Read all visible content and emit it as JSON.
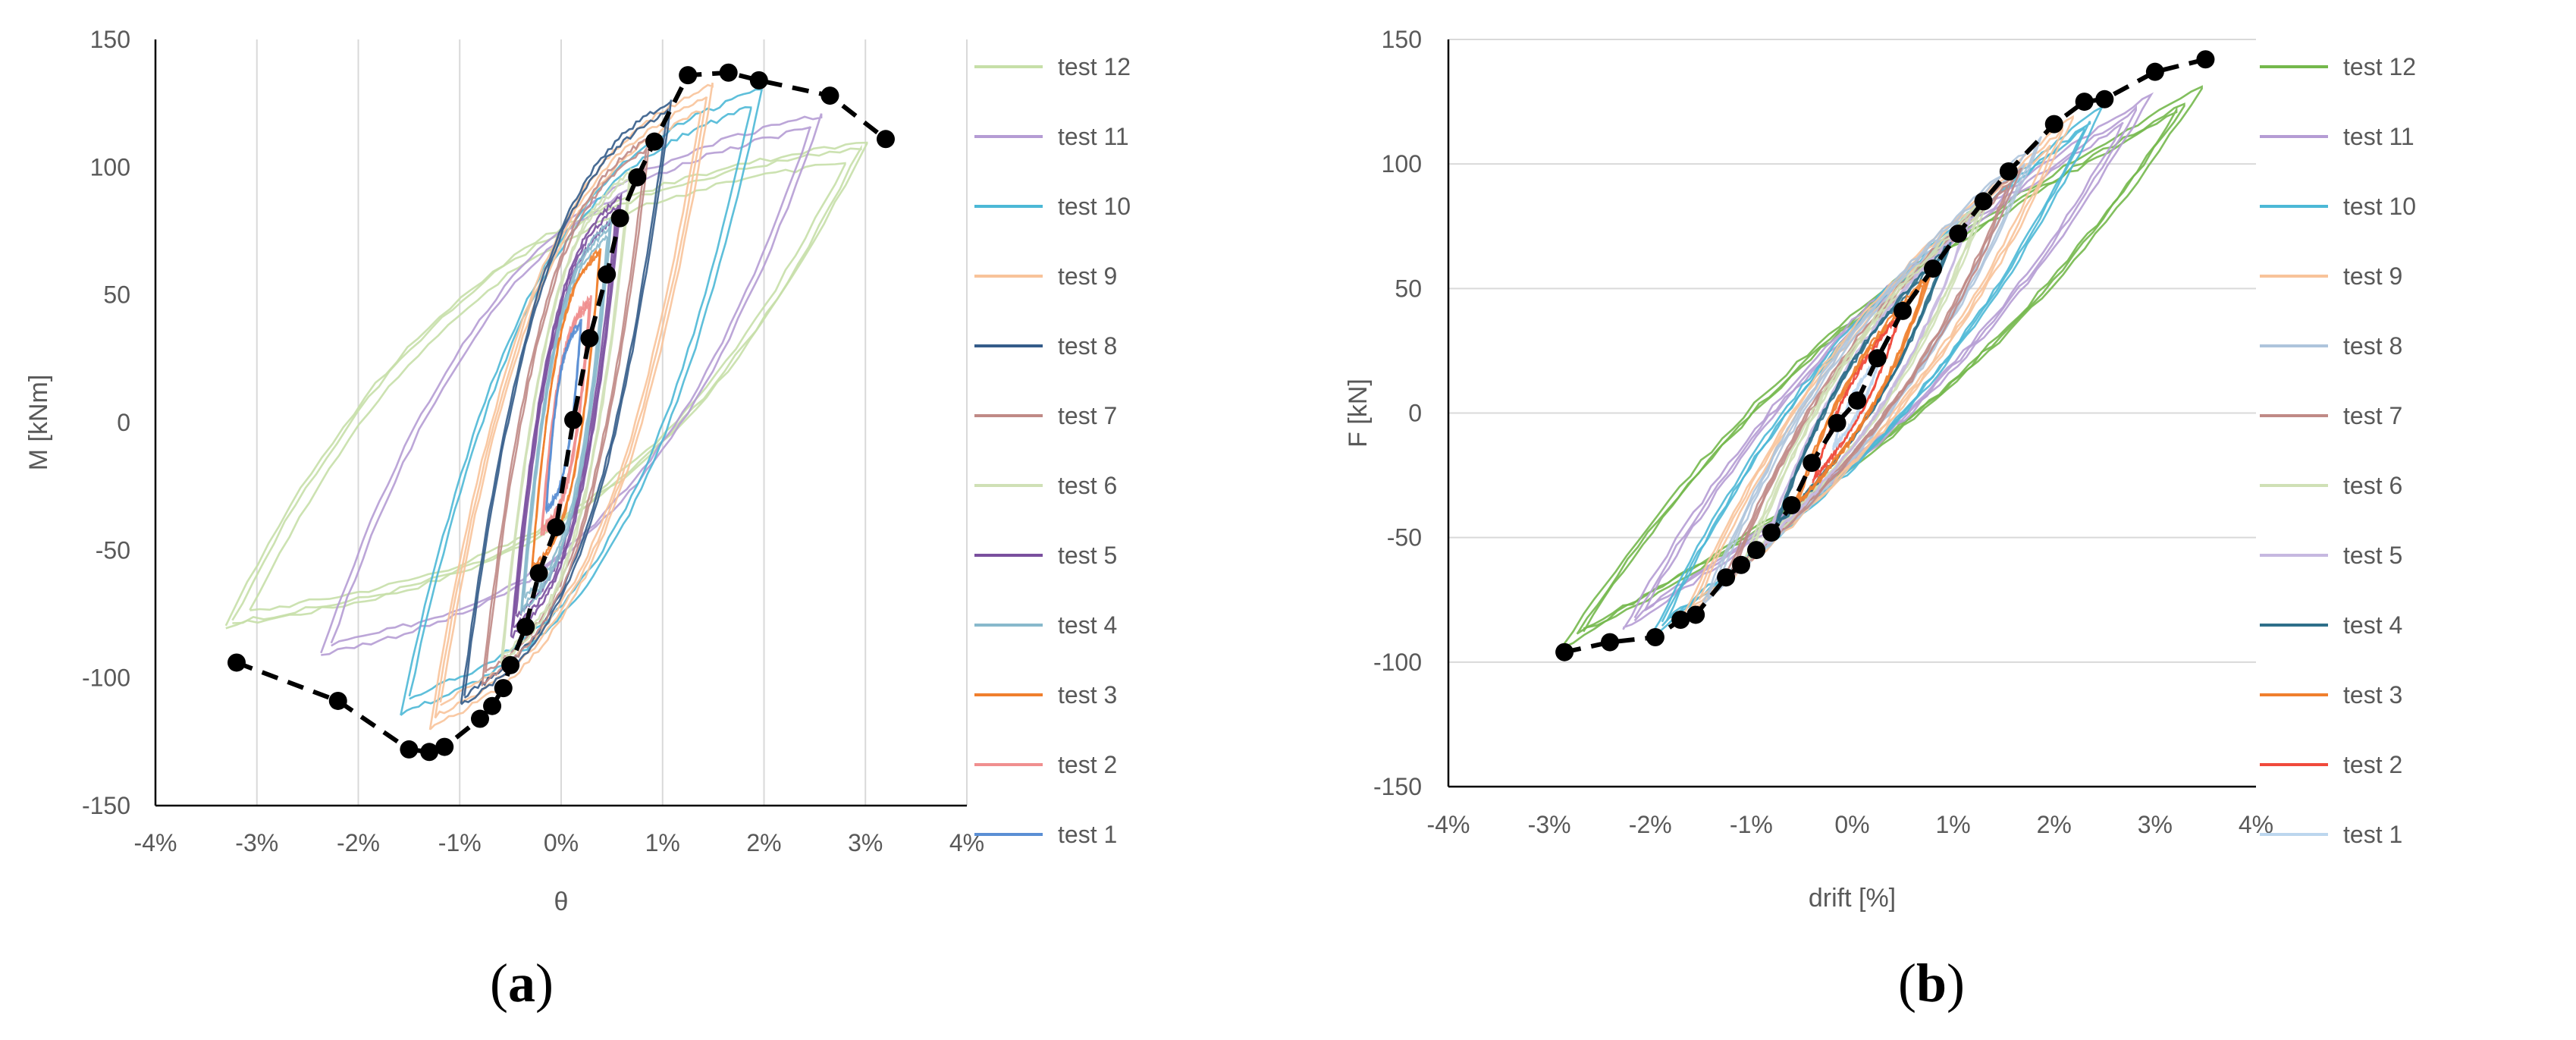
{
  "chart_data": [
    {
      "type": "line",
      "panel_label": "a",
      "xlabel": "θ",
      "ylabel": "M [kNm]",
      "xlim": [
        -0.04,
        0.04
      ],
      "ylim": [
        -150,
        150
      ],
      "x_ticks": [
        "-4%",
        "-3%",
        "-2%",
        "-1%",
        "0%",
        "1%",
        "2%",
        "3%",
        "4%"
      ],
      "y_ticks": [
        "150",
        "100",
        "50",
        "0",
        "-50",
        "-100",
        "-150"
      ],
      "grid": "vertical",
      "legend_position": "right",
      "series": [
        {
          "name": "test 12",
          "color": "#c6dfa8",
          "peak_x": [
            -0.034,
            0.031
          ],
          "peak_y": [
            -82,
            113
          ]
        },
        {
          "name": "test 11",
          "color": "#b59cd4",
          "peak_x": [
            -0.024,
            0.026
          ],
          "peak_y": [
            -92,
            122
          ]
        },
        {
          "name": "test 10",
          "color": "#4cb8d6",
          "peak_x": [
            -0.016,
            0.02
          ],
          "peak_y": [
            -115,
            132
          ]
        },
        {
          "name": "test 9",
          "color": "#f8c39a",
          "peak_x": [
            -0.013,
            0.015
          ],
          "peak_y": [
            -120,
            133
          ]
        },
        {
          "name": "test 8",
          "color": "#345c8a",
          "peak_x": [
            -0.01,
            0.011
          ],
          "peak_y": [
            -112,
            128
          ]
        },
        {
          "name": "test 7",
          "color": "#c08a86",
          "peak_x": [
            -0.008,
            0.009
          ],
          "peak_y": [
            -105,
            115
          ]
        },
        {
          "name": "test 6",
          "color": "#cfe0b6",
          "peak_x": [
            -0.006,
            0.007
          ],
          "peak_y": [
            -95,
            100
          ]
        },
        {
          "name": "test 5",
          "color": "#7a4f9e",
          "peak_x": [
            -0.005,
            0.006
          ],
          "peak_y": [
            -85,
            90
          ]
        },
        {
          "name": "test 4",
          "color": "#88b9cc",
          "peak_x": [
            -0.004,
            0.005
          ],
          "peak_y": [
            -75,
            80
          ]
        },
        {
          "name": "test 3",
          "color": "#f07f2d",
          "peak_x": [
            -0.003,
            0.004
          ],
          "peak_y": [
            -60,
            70
          ]
        },
        {
          "name": "test 2",
          "color": "#f08f8f",
          "peak_x": [
            -0.002,
            0.003
          ],
          "peak_y": [
            -45,
            50
          ]
        },
        {
          "name": "test 1",
          "color": "#5b8fd4",
          "peak_x": [
            -0.0015,
            0.002
          ],
          "peak_y": [
            -35,
            40
          ]
        }
      ],
      "envelope": {
        "x": [
          -0.032,
          -0.022,
          -0.015,
          -0.013,
          -0.0115,
          -0.008,
          -0.0068,
          -0.0057,
          -0.005,
          -0.0035,
          -0.0022,
          -0.0005,
          0.0012,
          0.0028,
          0.0045,
          0.0058,
          0.0075,
          0.0092,
          0.0125,
          0.0165,
          0.0195,
          0.0265,
          0.032
        ],
        "y": [
          -94,
          -109,
          -128,
          -129,
          -127,
          -116,
          -111,
          -104,
          -95,
          -80,
          -59,
          -41,
          1,
          33,
          58,
          80,
          96,
          110,
          136,
          137,
          134,
          128,
          111
        ]
      }
    },
    {
      "type": "line",
      "panel_label": "b",
      "xlabel": "drift [%]",
      "ylabel": "F [kN]",
      "xlim": [
        -4,
        4
      ],
      "ylim": [
        -150,
        150
      ],
      "x_ticks": [
        "-4%",
        "-3%",
        "-2%",
        "-1%",
        "0%",
        "1%",
        "2%",
        "3%",
        "4%"
      ],
      "y_ticks": [
        "150",
        "100",
        "50",
        "0",
        "-50",
        "-100",
        "-150"
      ],
      "grid": "horizontal",
      "legend_position": "right",
      "series": [
        {
          "name": "test 12",
          "color": "#74b84c",
          "peak_x": [
            -2.9,
            3.5
          ],
          "peak_y": [
            -95,
            132
          ]
        },
        {
          "name": "test 11",
          "color": "#b59cd4",
          "peak_x": [
            -2.3,
            3.0
          ],
          "peak_y": [
            -88,
            130
          ]
        },
        {
          "name": "test 10",
          "color": "#4cb8d6",
          "peak_x": [
            -2.0,
            2.5
          ],
          "peak_y": [
            -90,
            124
          ]
        },
        {
          "name": "test 9",
          "color": "#f8c39a",
          "peak_x": [
            -1.7,
            2.2
          ],
          "peak_y": [
            -84,
            120
          ]
        },
        {
          "name": "test 8",
          "color": "#aec4dc",
          "peak_x": [
            -1.5,
            1.9
          ],
          "peak_y": [
            -78,
            112
          ]
        },
        {
          "name": "test 7",
          "color": "#c08a86",
          "peak_x": [
            -1.3,
            1.7
          ],
          "peak_y": [
            -70,
            100
          ]
        },
        {
          "name": "test 6",
          "color": "#cfe0b6",
          "peak_x": [
            -1.1,
            1.4
          ],
          "peak_y": [
            -62,
            90
          ]
        },
        {
          "name": "test 5",
          "color": "#c6b8e0",
          "peak_x": [
            -0.9,
            1.2
          ],
          "peak_y": [
            -55,
            80
          ]
        },
        {
          "name": "test 4",
          "color": "#2e6f8a",
          "peak_x": [
            -0.8,
            1.0
          ],
          "peak_y": [
            -48,
            70
          ]
        },
        {
          "name": "test 3",
          "color": "#f07f2d",
          "peak_x": [
            -0.6,
            0.8
          ],
          "peak_y": [
            -40,
            58
          ]
        },
        {
          "name": "test 2",
          "color": "#f04a3c",
          "peak_x": [
            -0.4,
            0.5
          ],
          "peak_y": [
            -28,
            42
          ]
        },
        {
          "name": "test 1",
          "color": "#bcd6ee",
          "peak_x": [
            -0.2,
            0.3
          ],
          "peak_y": [
            -15,
            25
          ]
        }
      ],
      "envelope": {
        "x": [
          -2.85,
          -2.4,
          -1.95,
          -1.7,
          -1.55,
          -1.25,
          -1.1,
          -0.95,
          -0.8,
          -0.6,
          -0.4,
          -0.15,
          0.05,
          0.25,
          0.5,
          0.8,
          1.05,
          1.3,
          1.55,
          2.0,
          2.3,
          2.5,
          3.0,
          3.5
        ],
        "y": [
          -96,
          -92,
          -90,
          -83,
          -81,
          -66,
          -61,
          -55,
          -48,
          -37,
          -20,
          -4,
          5,
          22,
          41,
          58,
          72,
          85,
          97,
          116,
          125,
          126,
          137,
          142
        ]
      }
    }
  ],
  "captions": [
    {
      "open": "(",
      "letter": "a",
      "close": ")"
    },
    {
      "open": "(",
      "letter": "b",
      "close": ")"
    }
  ]
}
